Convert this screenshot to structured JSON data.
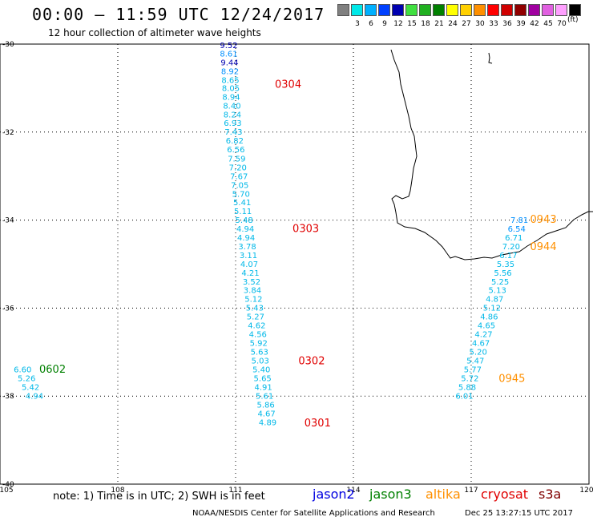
{
  "header": {
    "title": "00:00 – 11:59 UTC 12/24/2017",
    "subtitle": "12 hour collection of altimeter wave heights"
  },
  "legend": {
    "unit": "(ft)",
    "swatches": [
      {
        "label": "",
        "color": "#808080"
      },
      {
        "label": "3",
        "color": "#00e8e8"
      },
      {
        "label": "6",
        "color": "#00b0ff"
      },
      {
        "label": "9",
        "color": "#0040ff"
      },
      {
        "label": "12",
        "color": "#0000b0"
      },
      {
        "label": "15",
        "color": "#40e040"
      },
      {
        "label": "18",
        "color": "#20b020"
      },
      {
        "label": "21",
        "color": "#008000"
      },
      {
        "label": "24",
        "color": "#ffff00"
      },
      {
        "label": "27",
        "color": "#ffd000"
      },
      {
        "label": "30",
        "color": "#ff9000"
      },
      {
        "label": "33",
        "color": "#ff0000"
      },
      {
        "label": "36",
        "color": "#d00000"
      },
      {
        "label": "39",
        "color": "#900000"
      },
      {
        "label": "42",
        "color": "#a000a0"
      },
      {
        "label": "45",
        "color": "#e060e0"
      },
      {
        "label": "70",
        "color": "#ffa0ff"
      },
      {
        "label": "",
        "color": "#000000"
      }
    ]
  },
  "map": {
    "lon_range": [
      105,
      120
    ],
    "lat_range": [
      -40,
      -30
    ],
    "lon_ticks": [
      "105",
      "108",
      "111",
      "114",
      "117",
      "120"
    ],
    "lat_ticks": [
      "-30",
      "-32",
      "-34",
      "-36",
      "-38",
      "-40"
    ],
    "grid": "dotted",
    "value_colors": {
      "jason2_dark": "#0000b0",
      "jason2_light": "#0090ff",
      "altimeter_cyan": "#00b8e8"
    },
    "tracks": [
      {
        "id": "track-west",
        "color": "#00b8e8",
        "values": [
          {
            "lon": 110.6,
            "lat": -30.09,
            "v": "9.52",
            "c": "#0000b0"
          },
          {
            "lon": 110.6,
            "lat": -30.28,
            "v": "8.61",
            "c": "#0090ff"
          },
          {
            "lon": 110.62,
            "lat": -30.48,
            "v": "9.44",
            "c": "#0000b0"
          },
          {
            "lon": 110.63,
            "lat": -30.68,
            "v": "8.92",
            "c": "#0090ff"
          },
          {
            "lon": 110.64,
            "lat": -30.88,
            "v": "8.65"
          },
          {
            "lon": 110.65,
            "lat": -31.07,
            "v": "8.05"
          },
          {
            "lon": 110.66,
            "lat": -31.27,
            "v": "8.94"
          },
          {
            "lon": 110.68,
            "lat": -31.47,
            "v": "8.40"
          },
          {
            "lon": 110.69,
            "lat": -31.67,
            "v": "8.24"
          },
          {
            "lon": 110.7,
            "lat": -31.86,
            "v": "6.93"
          },
          {
            "lon": 110.72,
            "lat": -32.06,
            "v": "7.43"
          },
          {
            "lon": 110.75,
            "lat": -32.26,
            "v": "6.82"
          },
          {
            "lon": 110.78,
            "lat": -32.46,
            "v": "6.56"
          },
          {
            "lon": 110.8,
            "lat": -32.67,
            "v": "7.59"
          },
          {
            "lon": 110.83,
            "lat": -32.87,
            "v": "7.20"
          },
          {
            "lon": 110.86,
            "lat": -33.07,
            "v": "7.67"
          },
          {
            "lon": 110.88,
            "lat": -33.27,
            "v": "7.05"
          },
          {
            "lon": 110.91,
            "lat": -33.47,
            "v": "5.70"
          },
          {
            "lon": 110.94,
            "lat": -33.66,
            "v": "5.41"
          },
          {
            "lon": 110.96,
            "lat": -33.86,
            "v": "5.11"
          },
          {
            "lon": 110.99,
            "lat": -34.06,
            "v": "5.48"
          },
          {
            "lon": 111.02,
            "lat": -34.26,
            "v": "4.94"
          },
          {
            "lon": 111.04,
            "lat": -34.46,
            "v": "4.94"
          },
          {
            "lon": 111.07,
            "lat": -34.66,
            "v": "3.78"
          },
          {
            "lon": 111.1,
            "lat": -34.86,
            "v": "3.11"
          },
          {
            "lon": 111.12,
            "lat": -35.06,
            "v": "4.07"
          },
          {
            "lon": 111.15,
            "lat": -35.26,
            "v": "4.21"
          },
          {
            "lon": 111.18,
            "lat": -35.46,
            "v": "3.52"
          },
          {
            "lon": 111.2,
            "lat": -35.66,
            "v": "3.84"
          },
          {
            "lon": 111.23,
            "lat": -35.86,
            "v": "5.12"
          },
          {
            "lon": 111.26,
            "lat": -36.06,
            "v": "5.43"
          },
          {
            "lon": 111.28,
            "lat": -36.26,
            "v": "5.27"
          },
          {
            "lon": 111.31,
            "lat": -36.46,
            "v": "4.62"
          },
          {
            "lon": 111.34,
            "lat": -36.66,
            "v": "4.56"
          },
          {
            "lon": 111.36,
            "lat": -36.86,
            "v": "5.92"
          },
          {
            "lon": 111.38,
            "lat": -37.06,
            "v": "5.63"
          },
          {
            "lon": 111.4,
            "lat": -37.26,
            "v": "5.03"
          },
          {
            "lon": 111.43,
            "lat": -37.46,
            "v": "5.40"
          },
          {
            "lon": 111.46,
            "lat": -37.66,
            "v": "5.65"
          },
          {
            "lon": 111.48,
            "lat": -37.86,
            "v": "4.91"
          },
          {
            "lon": 111.51,
            "lat": -38.06,
            "v": "5.61"
          },
          {
            "lon": 111.54,
            "lat": -38.26,
            "v": "5.86"
          },
          {
            "lon": 111.56,
            "lat": -38.46,
            "v": "4.67"
          },
          {
            "lon": 111.59,
            "lat": -38.66,
            "v": "4.89"
          }
        ]
      },
      {
        "id": "track-east",
        "color": "#00b8e8",
        "values": [
          {
            "lon": 118.0,
            "lat": -34.06,
            "v": "7.81",
            "c": "#0090ff"
          },
          {
            "lon": 117.93,
            "lat": -34.26,
            "v": "6.54",
            "c": "#0090ff"
          },
          {
            "lon": 117.86,
            "lat": -34.46,
            "v": "6.71"
          },
          {
            "lon": 117.79,
            "lat": -34.66,
            "v": "7.20"
          },
          {
            "lon": 117.72,
            "lat": -34.86,
            "v": "6.17"
          },
          {
            "lon": 117.65,
            "lat": -35.06,
            "v": "5.35"
          },
          {
            "lon": 117.58,
            "lat": -35.26,
            "v": "5.56"
          },
          {
            "lon": 117.51,
            "lat": -35.46,
            "v": "5.25"
          },
          {
            "lon": 117.44,
            "lat": -35.66,
            "v": "5.13"
          },
          {
            "lon": 117.37,
            "lat": -35.86,
            "v": "4.87"
          },
          {
            "lon": 117.3,
            "lat": -36.06,
            "v": "5.12"
          },
          {
            "lon": 117.23,
            "lat": -36.26,
            "v": "4.86"
          },
          {
            "lon": 117.16,
            "lat": -36.46,
            "v": "4.65"
          },
          {
            "lon": 117.09,
            "lat": -36.66,
            "v": "4.27"
          },
          {
            "lon": 117.02,
            "lat": -36.86,
            "v": "4.67"
          },
          {
            "lon": 116.95,
            "lat": -37.06,
            "v": "5.20"
          },
          {
            "lon": 116.88,
            "lat": -37.26,
            "v": "5.47"
          },
          {
            "lon": 116.81,
            "lat": -37.46,
            "v": "5.77"
          },
          {
            "lon": 116.74,
            "lat": -37.66,
            "v": "5.72"
          },
          {
            "lon": 116.67,
            "lat": -37.86,
            "v": "5.88"
          },
          {
            "lon": 116.6,
            "lat": -38.06,
            "v": "6.01"
          }
        ]
      },
      {
        "id": "track-southwest",
        "color": "#00b8e8",
        "values": [
          {
            "lon": 105.35,
            "lat": -37.46,
            "v": "6.60"
          },
          {
            "lon": 105.45,
            "lat": -37.66,
            "v": "5.26"
          },
          {
            "lon": 105.55,
            "lat": -37.86,
            "v": "5.42"
          },
          {
            "lon": 105.65,
            "lat": -38.06,
            "v": "4.94"
          }
        ]
      }
    ],
    "time_labels": [
      {
        "text": "0304",
        "lon": 112.0,
        "lat": -30.99,
        "color": "#e00000"
      },
      {
        "text": "0303",
        "lon": 112.45,
        "lat": -34.27,
        "color": "#e00000"
      },
      {
        "text": "0302",
        "lon": 112.6,
        "lat": -37.28,
        "color": "#e00000"
      },
      {
        "text": "0301",
        "lon": 112.75,
        "lat": -38.69,
        "color": "#e00000"
      },
      {
        "text": "0602",
        "lon": 106.0,
        "lat": -37.47,
        "color": "#008000"
      },
      {
        "text": "0943",
        "lon": 118.5,
        "lat": -34.06,
        "color": "#ff9000"
      },
      {
        "text": "0944",
        "lon": 118.5,
        "lat": -34.68,
        "color": "#ff9000"
      },
      {
        "text": "0945",
        "lon": 117.7,
        "lat": -37.68,
        "color": "#ff9000"
      }
    ]
  },
  "footer": {
    "note": "note: 1) Time is in UTC; 2) SWH is in feet",
    "missions": [
      {
        "name": "jason2",
        "color": "#0000e0"
      },
      {
        "name": "jason3",
        "color": "#008000"
      },
      {
        "name": "altika",
        "color": "#ff9000"
      },
      {
        "name": "cryosat",
        "color": "#e00000"
      },
      {
        "name": "s3a",
        "color": "#800000"
      }
    ],
    "credit": "NOAA/NESDIS Center for Satellite Applications and Research",
    "timestamp": "Dec 25 13:27:15 UTC 2017"
  }
}
